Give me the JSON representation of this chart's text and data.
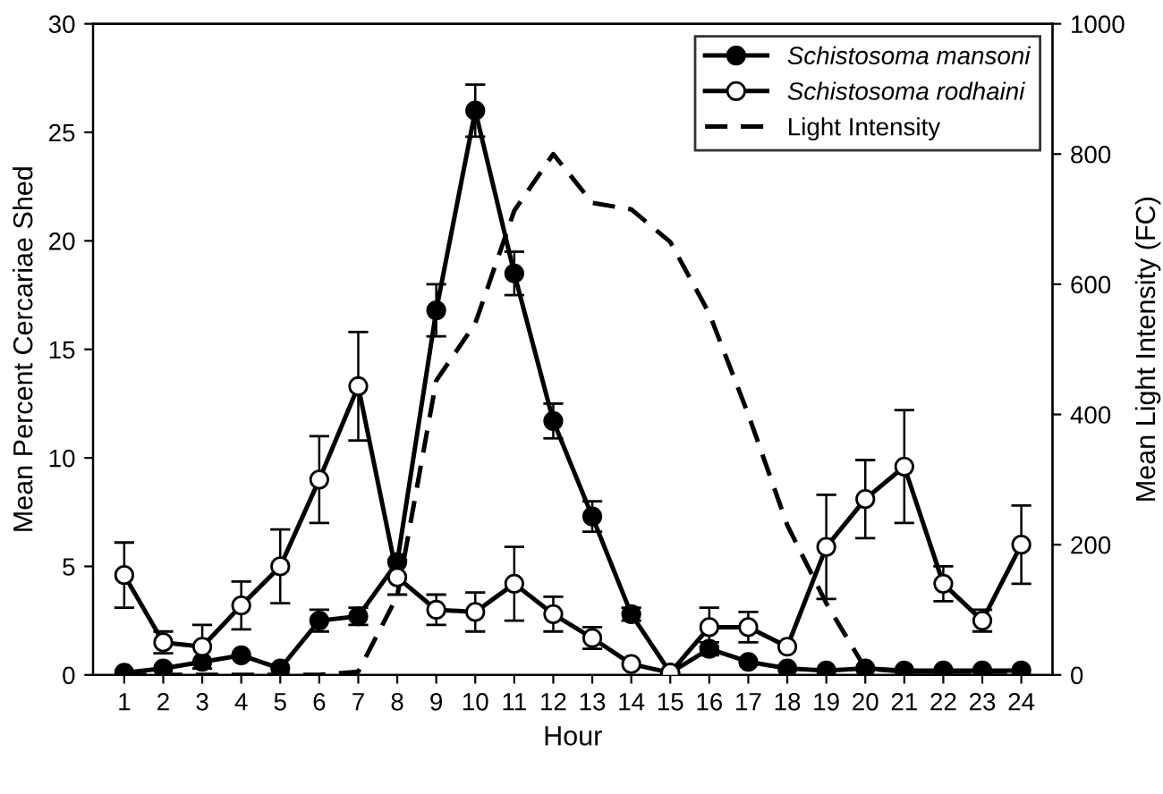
{
  "chart_data": {
    "type": "line",
    "xlabel": "Hour",
    "ylabel": "Mean Percent Cercariae Shed",
    "y2label": "Mean Light Intensity (FC)",
    "x": [
      1,
      2,
      3,
      4,
      5,
      6,
      7,
      8,
      9,
      10,
      11,
      12,
      13,
      14,
      15,
      16,
      17,
      18,
      19,
      20,
      21,
      22,
      23,
      24
    ],
    "xlim": [
      0.2,
      24.8
    ],
    "xticks": [
      1,
      2,
      3,
      4,
      5,
      6,
      7,
      8,
      9,
      10,
      11,
      12,
      13,
      14,
      15,
      16,
      17,
      18,
      19,
      20,
      21,
      22,
      23,
      24
    ],
    "ylim": [
      0,
      30
    ],
    "yticks": [
      0,
      5,
      10,
      15,
      20,
      25,
      30
    ],
    "y2lim": [
      0,
      1000
    ],
    "y2ticks": [
      0,
      200,
      400,
      600,
      800,
      1000
    ],
    "legend": "top right",
    "grid": false,
    "series": [
      {
        "name": "Schistosoma mansoni",
        "color": "#000000",
        "marker": "circle",
        "line_style": "solid",
        "values": [
          0.1,
          0.3,
          0.6,
          0.9,
          0.3,
          2.5,
          2.7,
          5.2,
          16.8,
          26,
          18.5,
          11.7,
          7.3,
          2.8,
          0.1,
          1.2,
          0.6,
          0.3,
          0.2,
          0.3,
          0.2,
          0.2,
          0.2,
          0.2
        ],
        "errors": [
          null,
          null,
          null,
          null,
          null,
          0.5,
          0.4,
          null,
          1.2,
          1.2,
          1.0,
          0.8,
          0.7,
          0.3,
          null,
          0.3,
          null,
          null,
          null,
          null,
          null,
          null,
          null,
          null
        ]
      },
      {
        "name": "Schistosoma rodhaini",
        "color": "#000000",
        "marker": "circle",
        "line_style": "solid",
        "values": [
          4.6,
          1.5,
          1.3,
          3.2,
          5.0,
          9.0,
          13.3,
          4.5,
          3.0,
          2.9,
          4.2,
          2.8,
          1.7,
          0.5,
          0.1,
          2.2,
          2.2,
          1.3,
          5.9,
          8.1,
          9.6,
          4.2,
          2.5,
          6.0
        ],
        "errors": [
          1.5,
          0.5,
          1.0,
          1.1,
          1.7,
          2.0,
          2.5,
          0.8,
          0.7,
          0.9,
          1.7,
          0.8,
          0.5,
          null,
          null,
          0.9,
          0.7,
          null,
          2.4,
          1.8,
          2.6,
          0.8,
          0.5,
          1.8
        ]
      },
      {
        "name": "Light Intensity",
        "color": "#000000",
        "marker": "none",
        "line_style": "dashed",
        "axis": "y2",
        "values": [
          0,
          0,
          0,
          0,
          0,
          0,
          5,
          121,
          452,
          540,
          713,
          800,
          725,
          715,
          665,
          555,
          400,
          230,
          110,
          10,
          5,
          5,
          5,
          5
        ]
      }
    ]
  }
}
